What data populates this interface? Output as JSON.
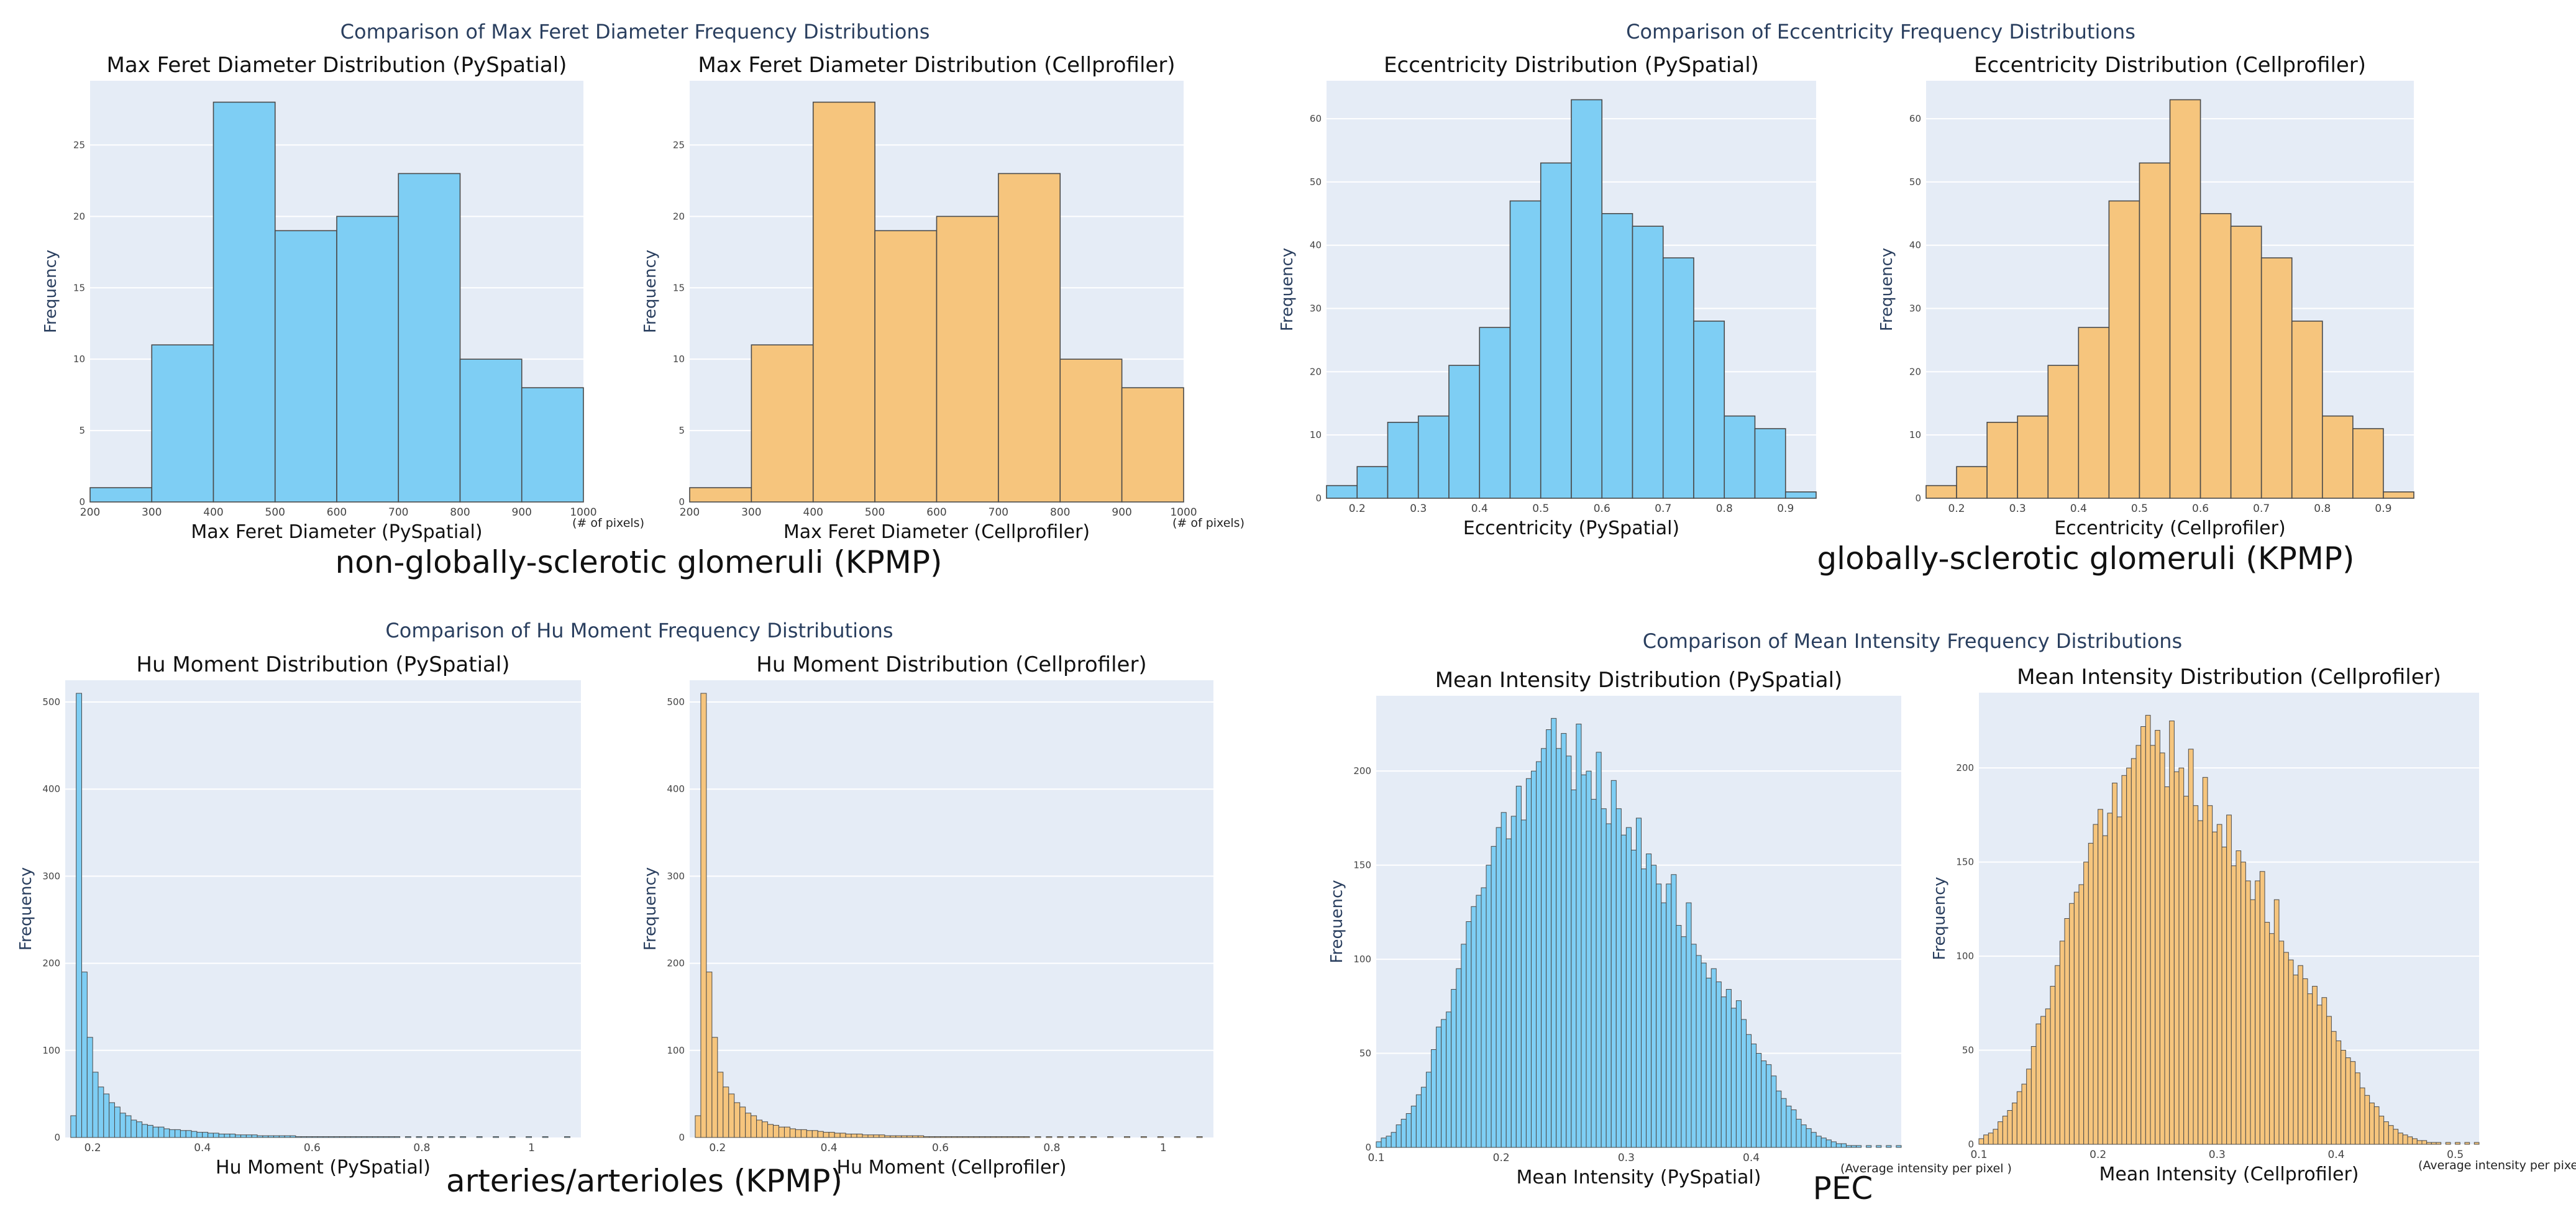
{
  "groups": [
    {
      "title": "Comparison of Max Feret Diameter Frequency Distributions",
      "caption": "non-globally-sclerotic glomeruli (KPMP)"
    },
    {
      "title": "Comparison of Eccentricity Frequency Distributions",
      "caption": "globally-sclerotic glomeruli (KPMP)"
    },
    {
      "title": "Comparison of Hu Moment Frequency Distributions",
      "caption": "arteries/arterioles (KPMP)"
    },
    {
      "title": "Comparison of Mean Intensity Frequency Distributions",
      "caption": "PEC"
    }
  ],
  "colors": {
    "pyspatial": "#7ecef4",
    "cellprofiler": "#f6c57d",
    "plot_bg": "#e5ecf6",
    "bar_edge": "#4a4a4a",
    "title_text": "#2a3f5f"
  },
  "chart_data": [
    {
      "type": "bar",
      "title": "Max Feret Diameter Distribution (PySpatial)",
      "xlabel": "Max Feret Diameter (PySpatial)",
      "ylabel": "Frequency",
      "unit_note": "(# of pixels)",
      "color": "pyspatial",
      "bin_start": 200,
      "bin_width": 100,
      "values": [
        1,
        11,
        28,
        19,
        20,
        23,
        10,
        8
      ],
      "xlim": [
        200,
        1000
      ],
      "ylim": [
        0,
        29.5
      ],
      "xticks": [
        200,
        300,
        400,
        500,
        600,
        700,
        800,
        900,
        1000
      ],
      "yticks": [
        0,
        5,
        10,
        15,
        20,
        25
      ],
      "grid": true
    },
    {
      "type": "bar",
      "title": "Max Feret Diameter Distribution (Cellprofiler)",
      "xlabel": "Max Feret Diameter (Cellprofiler)",
      "ylabel": "Frequency",
      "unit_note": "(# of pixels)",
      "color": "cellprofiler",
      "bin_start": 200,
      "bin_width": 100,
      "values": [
        1,
        11,
        28,
        19,
        20,
        23,
        10,
        8
      ],
      "xlim": [
        200,
        1000
      ],
      "ylim": [
        0,
        29.5
      ],
      "xticks": [
        200,
        300,
        400,
        500,
        600,
        700,
        800,
        900,
        1000
      ],
      "yticks": [
        0,
        5,
        10,
        15,
        20,
        25
      ],
      "grid": true
    },
    {
      "type": "bar",
      "title": "Eccentricity Distribution (PySpatial)",
      "xlabel": "Eccentricity (PySpatial)",
      "ylabel": "Frequency",
      "color": "pyspatial",
      "bin_start": 0.15,
      "bin_width": 0.05,
      "values": [
        2,
        5,
        12,
        13,
        21,
        27,
        47,
        53,
        63,
        45,
        43,
        38,
        28,
        13,
        11,
        1
      ],
      "xlim": [
        0.15,
        0.95
      ],
      "ylim": [
        0,
        66
      ],
      "xticks": [
        0.2,
        0.3,
        0.4,
        0.5,
        0.6,
        0.7,
        0.8,
        0.9
      ],
      "yticks": [
        0,
        10,
        20,
        30,
        40,
        50,
        60
      ],
      "grid": true
    },
    {
      "type": "bar",
      "title": "Eccentricity Distribution (Cellprofiler)",
      "xlabel": "Eccentricity (Cellprofiler)",
      "ylabel": "Frequency",
      "color": "cellprofiler",
      "bin_start": 0.15,
      "bin_width": 0.05,
      "values": [
        2,
        5,
        12,
        13,
        21,
        27,
        47,
        53,
        63,
        45,
        43,
        38,
        28,
        13,
        11,
        1
      ],
      "xlim": [
        0.15,
        0.95
      ],
      "ylim": [
        0,
        66
      ],
      "xticks": [
        0.2,
        0.3,
        0.4,
        0.5,
        0.6,
        0.7,
        0.8,
        0.9
      ],
      "yticks": [
        0,
        10,
        20,
        30,
        40,
        50,
        60
      ],
      "grid": true
    },
    {
      "type": "bar",
      "title": "Hu Moment Distribution (PySpatial)",
      "xlabel": "Hu Moment (PySpatial)",
      "ylabel": "Frequency",
      "color": "pyspatial",
      "bin_start": 0.16,
      "bin_width": 0.01,
      "values": [
        25,
        510,
        190,
        115,
        75,
        58,
        50,
        40,
        35,
        28,
        25,
        20,
        18,
        15,
        14,
        12,
        12,
        10,
        9,
        9,
        8,
        8,
        7,
        6,
        6,
        5,
        5,
        4,
        4,
        4,
        3,
        3,
        3,
        3,
        2,
        2,
        2,
        2,
        2,
        2,
        2,
        1,
        1,
        1,
        1,
        1,
        1,
        1,
        1,
        1,
        1,
        1,
        1,
        1,
        1,
        1,
        1,
        1,
        1,
        1,
        0,
        1,
        0,
        1,
        0,
        1,
        0,
        1,
        0,
        1,
        0,
        1,
        0,
        0,
        1,
        0,
        0,
        1,
        0,
        0,
        1,
        0,
        0,
        1,
        0,
        0,
        1,
        0,
        0,
        0,
        1
      ],
      "xlim": [
        0.15,
        1.09
      ],
      "ylim": [
        0,
        525
      ],
      "xticks": [
        0.2,
        0.4,
        0.6,
        0.8,
        1
      ],
      "yticks": [
        0,
        100,
        200,
        300,
        400,
        500
      ],
      "grid": true
    },
    {
      "type": "bar",
      "title": "Hu Moment Distribution (Cellprofiler)",
      "xlabel": "Hu Moment (Cellprofiler)",
      "ylabel": "Frequency",
      "color": "cellprofiler",
      "bin_start": 0.16,
      "bin_width": 0.01,
      "values": [
        25,
        510,
        190,
        115,
        75,
        58,
        50,
        40,
        35,
        28,
        25,
        20,
        18,
        15,
        14,
        12,
        12,
        10,
        9,
        9,
        8,
        8,
        7,
        6,
        6,
        5,
        5,
        4,
        4,
        4,
        3,
        3,
        3,
        3,
        2,
        2,
        2,
        2,
        2,
        2,
        2,
        1,
        1,
        1,
        1,
        1,
        1,
        1,
        1,
        1,
        1,
        1,
        1,
        1,
        1,
        1,
        1,
        1,
        1,
        1,
        0,
        1,
        0,
        1,
        0,
        1,
        0,
        1,
        0,
        1,
        0,
        1,
        0,
        0,
        1,
        0,
        0,
        1,
        0,
        0,
        1,
        0,
        0,
        1,
        0,
        0,
        1,
        0,
        0,
        0,
        1
      ],
      "xlim": [
        0.15,
        1.09
      ],
      "ylim": [
        0,
        525
      ],
      "xticks": [
        0.2,
        0.4,
        0.6,
        0.8,
        1
      ],
      "yticks": [
        0,
        100,
        200,
        300,
        400,
        500
      ],
      "grid": true
    },
    {
      "type": "bar",
      "title": "Mean Intensity Distribution (PySpatial)",
      "xlabel": "Mean Intensity (PySpatial)",
      "ylabel": "Frequency",
      "unit_note": "(Average intensity per pixel )",
      "color": "pyspatial",
      "bin_start": 0.1,
      "bin_width": 0.004,
      "values": [
        3,
        5,
        6,
        8,
        12,
        15,
        18,
        22,
        28,
        32,
        40,
        52,
        64,
        68,
        72,
        84,
        95,
        108,
        120,
        128,
        134,
        138,
        150,
        160,
        170,
        178,
        164,
        176,
        192,
        174,
        196,
        200,
        205,
        212,
        222,
        228,
        212,
        220,
        208,
        190,
        225,
        198,
        200,
        185,
        210,
        180,
        172,
        195,
        180,
        166,
        170,
        158,
        175,
        148,
        156,
        150,
        140,
        130,
        140,
        145,
        118,
        112,
        130,
        108,
        102,
        98,
        90,
        95,
        88,
        80,
        84,
        74,
        78,
        68,
        60,
        55,
        50,
        46,
        44,
        38,
        30,
        26,
        22,
        20,
        15,
        12,
        10,
        8,
        6,
        5,
        4,
        3,
        2,
        2,
        1,
        1,
        1,
        0,
        1,
        0,
        1,
        0,
        1,
        0,
        1
      ],
      "xlim": [
        0.1,
        0.52
      ],
      "ylim": [
        0,
        240
      ],
      "xticks": [
        0.1,
        0.2,
        0.3,
        0.4
      ],
      "yticks": [
        0,
        50,
        100,
        150,
        200
      ],
      "grid": true
    },
    {
      "type": "bar",
      "title": "Mean Intensity Distribution (Cellprofiler)",
      "xlabel": "Mean Intensity (Cellprofiler)",
      "ylabel": "Frequency",
      "unit_note": "(Average intensity per pixel )",
      "color": "cellprofiler",
      "bin_start": 0.1,
      "bin_width": 0.004,
      "values": [
        3,
        5,
        6,
        8,
        12,
        15,
        18,
        22,
        28,
        32,
        40,
        52,
        64,
        68,
        72,
        84,
        95,
        108,
        120,
        128,
        134,
        138,
        150,
        160,
        170,
        178,
        164,
        176,
        192,
        174,
        196,
        200,
        205,
        212,
        222,
        228,
        212,
        220,
        208,
        190,
        225,
        198,
        200,
        185,
        210,
        180,
        172,
        195,
        180,
        166,
        170,
        158,
        175,
        148,
        156,
        150,
        140,
        130,
        140,
        145,
        118,
        112,
        130,
        108,
        102,
        98,
        90,
        95,
        88,
        80,
        84,
        74,
        78,
        68,
        60,
        55,
        50,
        46,
        44,
        38,
        30,
        26,
        22,
        20,
        15,
        12,
        10,
        8,
        6,
        5,
        4,
        3,
        2,
        2,
        1,
        1,
        1,
        0,
        1,
        0,
        1,
        0,
        1,
        0,
        1
      ],
      "xlim": [
        0.1,
        0.52
      ],
      "ylim": [
        0,
        240
      ],
      "xticks": [
        0.1,
        0.2,
        0.3,
        0.4,
        0.5
      ],
      "yticks": [
        0,
        50,
        100,
        150,
        200
      ],
      "grid": true
    }
  ]
}
